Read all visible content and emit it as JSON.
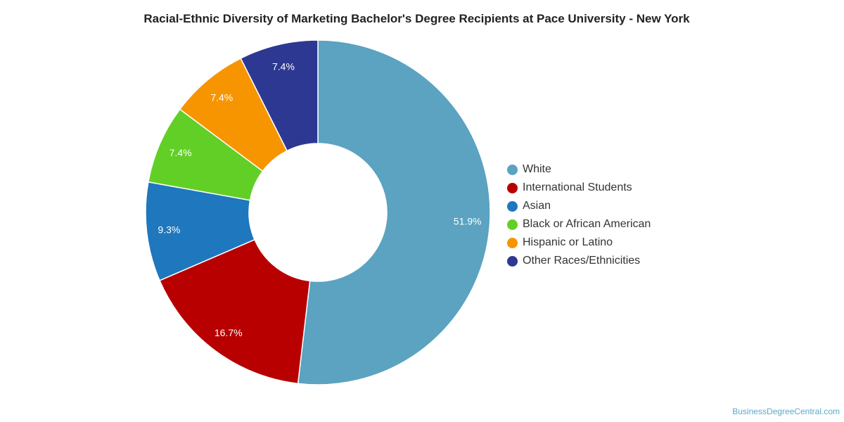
{
  "chart_data": {
    "type": "pie",
    "variant": "donut",
    "title": "Racial-Ethnic Diversity of Marketing Bachelor's Degree Recipients at Pace University - New York",
    "categories": [
      "White",
      "International Students",
      "Asian",
      "Black or African American",
      "Hispanic or Latino",
      "Other Races/Ethnicities"
    ],
    "values": [
      51.9,
      16.7,
      9.3,
      7.4,
      7.4,
      7.4
    ],
    "data_labels": [
      "51.9%",
      "16.7%",
      "9.3%",
      "7.4%",
      "7.4%",
      "7.4%"
    ],
    "colors": [
      "#5ba3c0",
      "#b80000",
      "#1f77bd",
      "#62cf26",
      "#f79500",
      "#2d3892"
    ],
    "legend_position": "right"
  },
  "source": "BusinessDegreeCentral.com"
}
